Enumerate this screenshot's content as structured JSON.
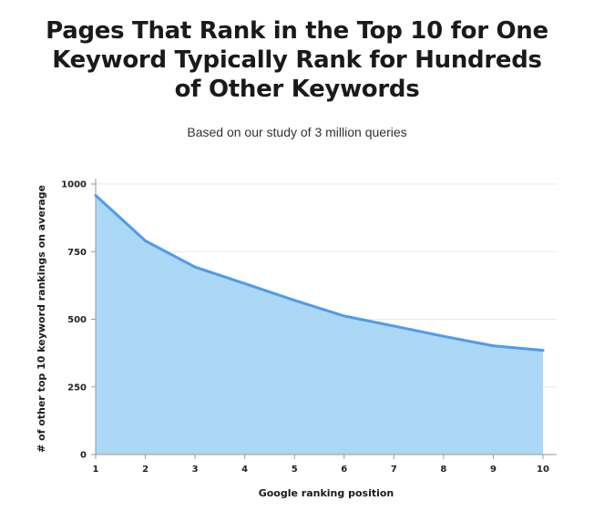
{
  "title_lines": [
    "Pages That Rank in the Top 10 for One",
    "Keyword Typically Rank for Hundreds",
    "of Other Keywords"
  ],
  "subtitle": "Based on our study of 3 million queries",
  "colors": {
    "line": "#4f9bed",
    "area": "#abd8f6",
    "grid": "#e9e9e9",
    "axis": "#9a9a9a",
    "text": "#1a1a1a"
  },
  "chart_data": {
    "type": "area",
    "title": "Pages That Rank in the Top 10 for One Keyword Typically Rank for Hundreds of Other Keywords",
    "subtitle": "Based on our study of 3 million queries",
    "xlabel": "Google ranking position",
    "ylabel": "# of other top 10 keyword rankings on average",
    "x": [
      1,
      2,
      3,
      4,
      5,
      6,
      7,
      8,
      9,
      10
    ],
    "series": [
      {
        "values": [
          958,
          790,
          693,
          632,
          570,
          512,
          475,
          437,
          402,
          385
        ]
      }
    ],
    "xlim": [
      1,
      10
    ],
    "ylim": [
      0,
      1000
    ],
    "yticks": [
      0,
      250,
      500,
      750,
      1000
    ],
    "xticks": [
      "1",
      "2",
      "3",
      "4",
      "5",
      "6",
      "7",
      "8",
      "9",
      "10"
    ],
    "grid": true,
    "legend": "none"
  }
}
